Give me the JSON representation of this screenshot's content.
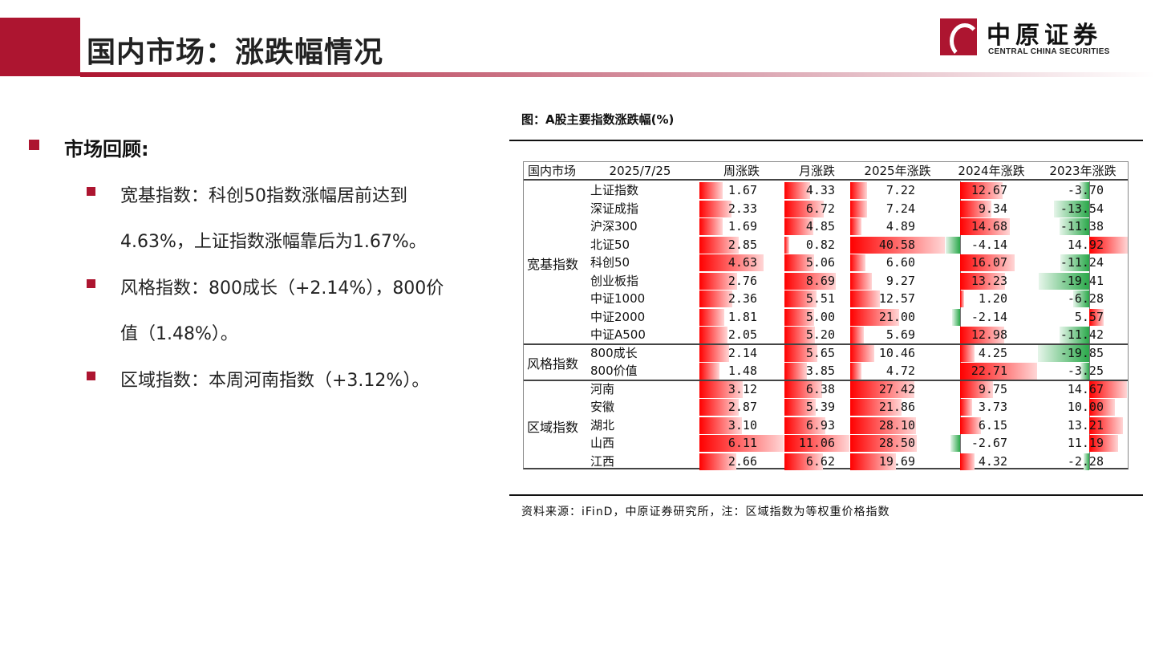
{
  "header": {
    "title": "国内市场：涨跌幅情况",
    "logo_cn": "中原证券",
    "logo_en": "CENTRAL CHINA SECURITIES"
  },
  "review": {
    "heading": "市场回顾:",
    "items": [
      {
        "line1": "宽基指数：科创50指数涨幅居前达到",
        "line2": "4.63%，上证指数涨幅靠后为1.67%。"
      },
      {
        "line1": "风格指数：800成长（+2.14%），800价",
        "line2": "值（1.48%）。"
      },
      {
        "line1": "区域指数：本周河南指数（+3.12%）。"
      }
    ]
  },
  "figure": {
    "caption": "图：A股主要指数涨跌幅(%)",
    "source": "资料来源：iFinD，中原证券研究所，注：区域指数为等权重价格指数"
  },
  "colors": {
    "red": "#ff0000",
    "green": "#2aa84a",
    "brand": "#ad1530"
  },
  "chart_data": {
    "type": "table",
    "headers": [
      "国内市场",
      "2025/7/25",
      "周涨跌",
      "月涨跌",
      "2025年涨跌",
      "2024年涨跌",
      "2023年涨跌"
    ],
    "groups": [
      {
        "name": "宽基指数",
        "rows": [
          {
            "name": "上证指数",
            "values": [
              1.67,
              4.33,
              7.22,
              12.67,
              -3.7
            ]
          },
          {
            "name": "深证成指",
            "values": [
              2.33,
              6.72,
              7.24,
              9.34,
              -13.54
            ]
          },
          {
            "name": "沪深300",
            "values": [
              1.69,
              4.85,
              4.89,
              14.68,
              -11.38
            ]
          },
          {
            "name": "北证50",
            "values": [
              2.85,
              0.82,
              40.58,
              -4.14,
              14.92
            ]
          },
          {
            "name": "科创50",
            "values": [
              4.63,
              5.06,
              6.6,
              16.07,
              -11.24
            ]
          },
          {
            "name": "创业板指",
            "values": [
              2.76,
              8.69,
              9.27,
              13.23,
              -19.41
            ]
          },
          {
            "name": "中证1000",
            "values": [
              2.36,
              5.51,
              12.57,
              1.2,
              -6.28
            ]
          },
          {
            "name": "中证2000",
            "values": [
              1.81,
              5.0,
              21.0,
              -2.14,
              5.57
            ]
          },
          {
            "name": "中证A500",
            "values": [
              2.05,
              5.2,
              5.69,
              12.98,
              -11.42
            ]
          }
        ]
      },
      {
        "name": "风格指数",
        "rows": [
          {
            "name": "800成长",
            "values": [
              2.14,
              5.65,
              10.46,
              4.25,
              -19.85
            ]
          },
          {
            "name": "800价值",
            "values": [
              1.48,
              3.85,
              4.72,
              22.71,
              -3.25
            ]
          }
        ]
      },
      {
        "name": "区域指数",
        "rows": [
          {
            "name": "河南",
            "values": [
              3.12,
              6.38,
              27.42,
              9.75,
              14.67
            ]
          },
          {
            "name": "安徽",
            "values": [
              2.87,
              5.39,
              21.86,
              3.73,
              10.0
            ]
          },
          {
            "name": "湖北",
            "values": [
              3.1,
              6.93,
              28.1,
              6.15,
              13.21
            ]
          },
          {
            "name": "山西",
            "values": [
              6.11,
              11.06,
              28.5,
              -2.67,
              11.19
            ]
          },
          {
            "name": "江西",
            "values": [
              2.66,
              6.62,
              19.69,
              4.32,
              -2.28
            ]
          }
        ]
      }
    ]
  }
}
